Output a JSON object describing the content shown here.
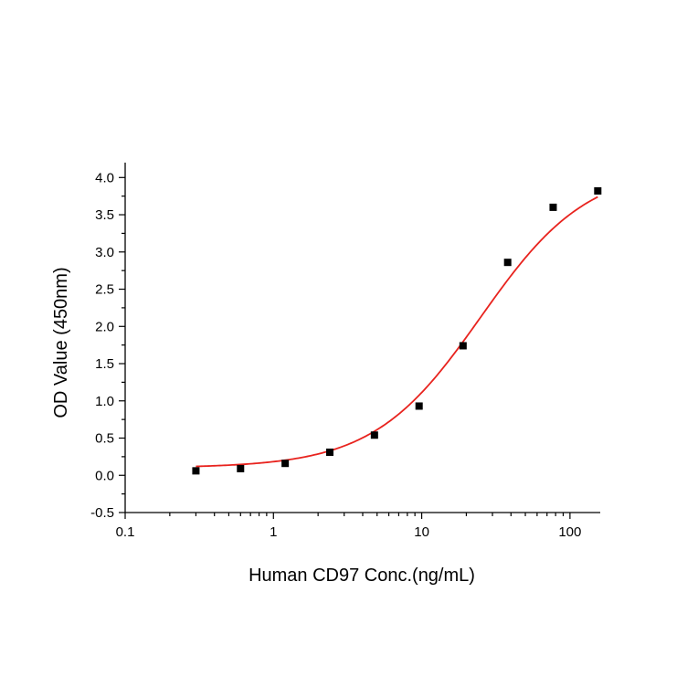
{
  "chart_data": {
    "type": "scatter",
    "title": "",
    "xlabel": "Human CD97 Conc.(ng/mL)",
    "ylabel": "OD Value (450nm)",
    "x_scale": "log",
    "xlim": [
      0.1,
      160
    ],
    "ylim": [
      -0.5,
      4.2
    ],
    "x_ticks": [
      0.1,
      1,
      10,
      100
    ],
    "x_tick_labels": [
      "0.1",
      "1",
      "10",
      "100"
    ],
    "y_ticks": [
      -0.5,
      0.0,
      0.5,
      1.0,
      1.5,
      2.0,
      2.5,
      3.0,
      3.5,
      4.0
    ],
    "y_tick_labels": [
      "-0.5",
      "0.0",
      "0.5",
      "1.0",
      "1.5",
      "2.0",
      "2.5",
      "3.0",
      "3.5",
      "4.0"
    ],
    "grid": false,
    "points": [
      {
        "x": 0.3,
        "y": 0.06
      },
      {
        "x": 0.6,
        "y": 0.09
      },
      {
        "x": 1.2,
        "y": 0.16
      },
      {
        "x": 2.4,
        "y": 0.31
      },
      {
        "x": 4.8,
        "y": 0.54
      },
      {
        "x": 9.6,
        "y": 0.93
      },
      {
        "x": 19,
        "y": 1.74
      },
      {
        "x": 38,
        "y": 2.86
      },
      {
        "x": 77,
        "y": 3.6
      },
      {
        "x": 154,
        "y": 3.82
      }
    ],
    "fit": {
      "model": "4PL",
      "bottom": 0.1,
      "top": 4.15,
      "ec50": 25,
      "hill": 1.2,
      "x_range": [
        0.3,
        154
      ],
      "color": "#e8231e"
    },
    "marker_color": "#000000"
  }
}
